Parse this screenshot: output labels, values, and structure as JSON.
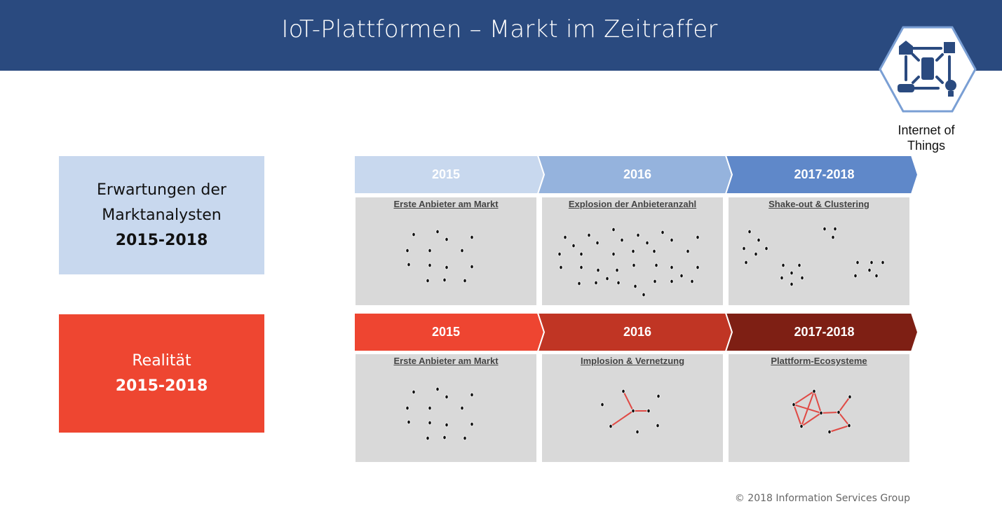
{
  "header": {
    "title": "IoT-Plattformen – Markt im Zeitraffer"
  },
  "logo": {
    "icon": "iot-hexagon-icon",
    "caption_line1": "Internet of",
    "caption_line2": "Things"
  },
  "rows": [
    {
      "label_line1": "Erwartungen der",
      "label_line2": "Marktanalysten",
      "label_years": "2015-2018",
      "box_color": "#c8d8ee",
      "phases": [
        {
          "label": "2015",
          "color": "#c8d8ee",
          "title": "Erste Anbieter am Markt"
        },
        {
          "label": "2016",
          "color": "#95b3dd",
          "title": "Explosion der Anbieteranzahl"
        },
        {
          "label": "2017-2018",
          "color": "#5f88c9",
          "title": "Shake-out & Clustering"
        }
      ]
    },
    {
      "label_line1": "Realität",
      "label_years": "2015-2018",
      "box_color": "#ee4631",
      "phases": [
        {
          "label": "2015",
          "color": "#ee4531",
          "title": "Erste Anbieter am Markt"
        },
        {
          "label": "2016",
          "color": "#c03524",
          "title": "Implosion & Vernetzung"
        },
        {
          "label": "2017-2018",
          "color": "#7e1f14",
          "title": "Plattform-Ecosysteme"
        }
      ]
    }
  ],
  "colors": {
    "header": "#2a4a7f",
    "panel": "#d9d9d9",
    "dot": "#111111",
    "link": "#e04a45"
  },
  "footer": {
    "copyright": "© 2018 Information Services Group"
  }
}
